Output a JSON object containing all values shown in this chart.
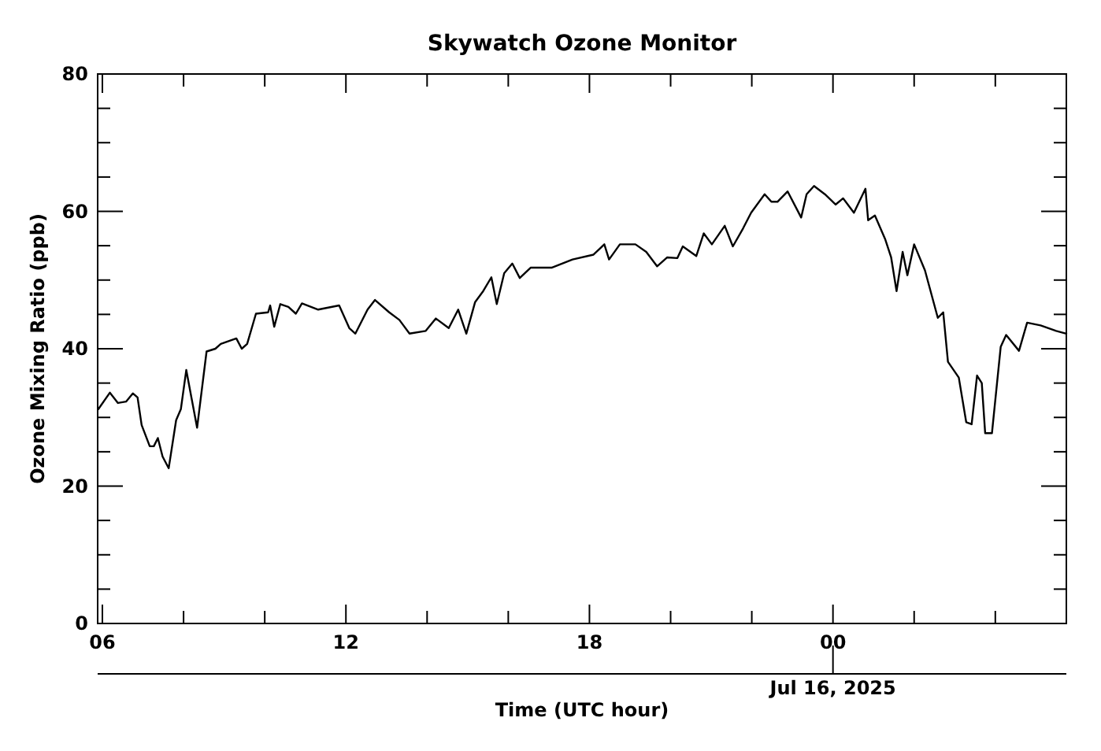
{
  "chart_data": {
    "type": "line",
    "title": "Skywatch Ozone Monitor",
    "xlabel": "Time (UTC hour)",
    "ylabel": "Ozone Mixing Ratio (ppb)",
    "xlim": [
      "2025-07-15T05:53",
      "2025-07-16T05:45"
    ],
    "ylim": [
      0,
      80
    ],
    "xticks": [
      {
        "value": "2025-07-15T06:00",
        "label": "06"
      },
      {
        "value": "2025-07-15T08:00",
        "label": null
      },
      {
        "value": "2025-07-15T10:00",
        "label": null
      },
      {
        "value": "2025-07-15T12:00",
        "label": "12"
      },
      {
        "value": "2025-07-15T14:00",
        "label": null
      },
      {
        "value": "2025-07-15T16:00",
        "label": null
      },
      {
        "value": "2025-07-15T18:00",
        "label": "18"
      },
      {
        "value": "2025-07-15T20:00",
        "label": null
      },
      {
        "value": "2025-07-15T22:00",
        "label": null
      },
      {
        "value": "2025-07-16T00:00",
        "label": "00"
      },
      {
        "value": "2025-07-16T02:00",
        "label": null
      },
      {
        "value": "2025-07-16T04:00",
        "label": null
      }
    ],
    "yticks": [
      0,
      {
        "value": 5,
        "label": null
      },
      {
        "value": 10,
        "label": null
      },
      {
        "value": 15,
        "label": null
      },
      20,
      {
        "value": 25,
        "label": null
      },
      {
        "value": 30,
        "label": null
      },
      {
        "value": 35,
        "label": null
      },
      40,
      {
        "value": 45,
        "label": null
      },
      {
        "value": 50,
        "label": null
      },
      {
        "value": 55,
        "label": null
      },
      60,
      {
        "value": 65,
        "label": null
      },
      {
        "value": 70,
        "label": null
      },
      {
        "value": 75,
        "label": null
      },
      80
    ],
    "annotations": [
      {
        "text": "Jul 16, 2025",
        "x": "2025-07-16"
      }
    ],
    "grid": false,
    "marker": "none",
    "line_style": "solid",
    "series": [
      {
        "color": "#000000",
        "x": [
          "2025-07-15T05:54",
          "2025-07-15T06:11",
          "2025-07-15T06:23",
          "2025-07-15T06:35",
          "2025-07-15T06:45",
          "2025-07-15T06:52",
          "2025-07-15T06:58",
          "2025-07-15T07:10",
          "2025-07-15T07:16",
          "2025-07-15T07:22",
          "2025-07-15T07:29",
          "2025-07-15T07:38",
          "2025-07-15T07:49",
          "2025-07-15T07:56",
          "2025-07-15T08:04",
          "2025-07-15T08:12",
          "2025-07-15T08:20",
          "2025-07-15T08:34",
          "2025-07-15T08:47",
          "2025-07-15T08:55",
          "2025-07-15T09:18",
          "2025-07-15T09:26",
          "2025-07-15T09:34",
          "2025-07-15T09:47",
          "2025-07-15T10:05",
          "2025-07-15T10:08",
          "2025-07-15T10:14",
          "2025-07-15T10:23",
          "2025-07-15T10:35",
          "2025-07-15T10:46",
          "2025-07-15T10:55",
          "2025-07-15T11:19",
          "2025-07-15T11:50",
          "2025-07-15T12:05",
          "2025-07-15T12:14",
          "2025-07-15T12:32",
          "2025-07-15T12:43",
          "2025-07-15T13:04",
          "2025-07-15T13:19",
          "2025-07-15T13:34",
          "2025-07-15T13:58",
          "2025-07-15T14:13",
          "2025-07-15T14:32",
          "2025-07-15T14:46",
          "2025-07-15T14:58",
          "2025-07-15T15:11",
          "2025-07-15T15:23",
          "2025-07-15T15:35",
          "2025-07-15T15:43",
          "2025-07-15T15:54",
          "2025-07-15T16:06",
          "2025-07-15T16:17",
          "2025-07-15T16:33",
          "2025-07-15T17:04",
          "2025-07-15T17:35",
          "2025-07-15T18:06",
          "2025-07-15T18:22",
          "2025-07-15T18:29",
          "2025-07-15T18:45",
          "2025-07-15T19:08",
          "2025-07-15T19:24",
          "2025-07-15T19:40",
          "2025-07-15T19:55",
          "2025-07-15T20:10",
          "2025-07-15T20:18",
          "2025-07-15T20:38",
          "2025-07-15T20:49",
          "2025-07-15T21:01",
          "2025-07-15T21:20",
          "2025-07-15T21:32",
          "2025-07-15T21:47",
          "2025-07-15T21:59",
          "2025-07-15T22:19",
          "2025-07-15T22:29",
          "2025-07-15T22:38",
          "2025-07-15T22:53",
          "2025-07-15T23:13",
          "2025-07-15T23:21",
          "2025-07-15T23:32",
          "2025-07-15T23:48",
          "2025-07-16T00:04",
          "2025-07-16T00:15",
          "2025-07-16T00:31",
          "2025-07-16T00:48",
          "2025-07-16T00:52",
          "2025-07-16T01:02",
          "2025-07-16T01:17",
          "2025-07-16T01:26",
          "2025-07-16T01:34",
          "2025-07-16T01:43",
          "2025-07-16T01:50",
          "2025-07-16T02:00",
          "2025-07-16T02:16",
          "2025-07-16T02:35",
          "2025-07-16T02:43",
          "2025-07-16T02:50",
          "2025-07-16T03:06",
          "2025-07-16T03:17",
          "2025-07-16T03:25",
          "2025-07-16T03:33",
          "2025-07-16T03:40",
          "2025-07-16T03:45",
          "2025-07-16T03:55",
          "2025-07-16T04:08",
          "2025-07-16T04:16",
          "2025-07-16T04:35",
          "2025-07-16T04:47",
          "2025-07-16T05:07",
          "2025-07-16T05:30",
          "2025-07-16T05:45"
        ],
        "values": [
          31.2,
          33.6,
          32.1,
          32.3,
          33.5,
          32.9,
          28.9,
          25.8,
          25.8,
          27,
          24.3,
          22.6,
          29.6,
          31.2,
          36.9,
          32.7,
          28.5,
          39.6,
          40,
          40.7,
          41.5,
          40,
          40.7,
          45.1,
          45.3,
          46.3,
          43.2,
          46.5,
          46.1,
          45.1,
          46.6,
          45.7,
          46.3,
          43,
          42.2,
          45.7,
          47.1,
          45.3,
          44.2,
          42.2,
          42.6,
          44.4,
          43,
          45.7,
          42.2,
          46.8,
          48.4,
          50.4,
          46.5,
          51,
          52.4,
          50.3,
          51.8,
          51.8,
          53,
          53.7,
          55.2,
          53,
          55.2,
          55.2,
          54.1,
          52,
          53.3,
          53.2,
          54.9,
          53.5,
          56.8,
          55.2,
          57.9,
          54.9,
          57.5,
          59.8,
          62.5,
          61.4,
          61.4,
          62.9,
          59.1,
          62.5,
          63.7,
          62.5,
          61,
          61.9,
          59.8,
          63.3,
          58.7,
          59.4,
          56,
          53.3,
          48.4,
          54.1,
          50.7,
          55.2,
          51.4,
          44.5,
          45.3,
          38.1,
          35.8,
          29.3,
          29,
          36.1,
          35,
          27.7,
          27.7,
          40.3,
          42,
          39.7,
          43.8,
          43.4,
          42.6,
          42.2
        ]
      }
    ]
  }
}
